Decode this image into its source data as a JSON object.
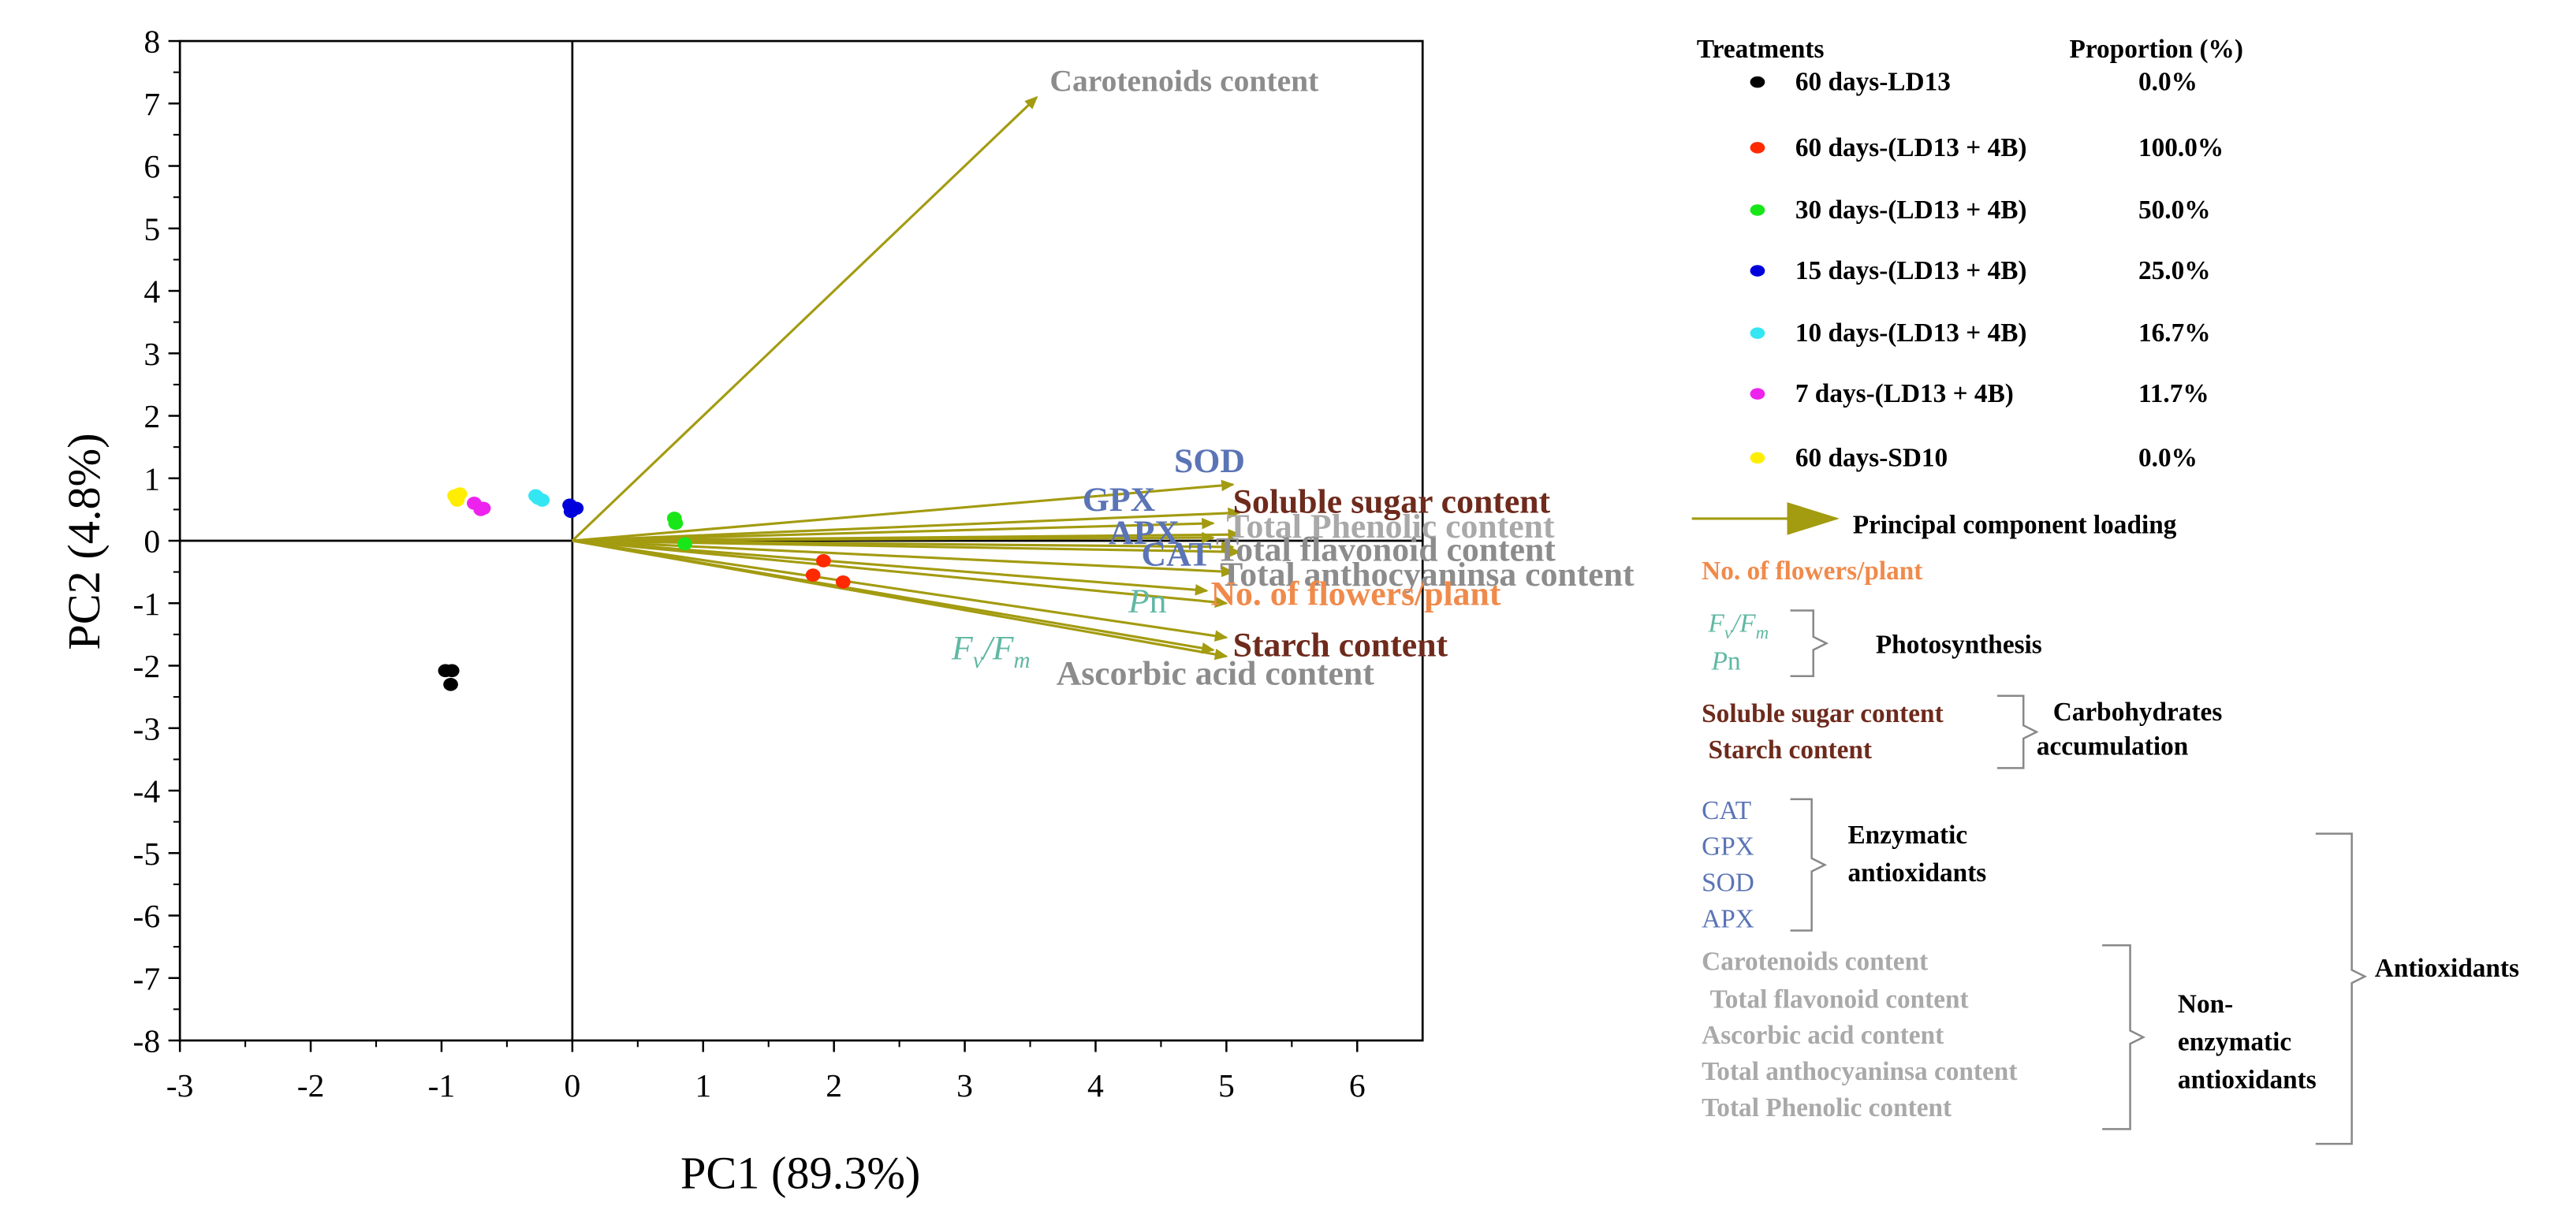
{
  "chart_data": {
    "type": "scatter",
    "title": "",
    "xlabel": "PC1 (89.3%)",
    "ylabel": "PC2 (4.8%)",
    "xlim": [
      -3,
      6.5
    ],
    "ylim": [
      -8,
      8
    ],
    "xticks": [
      -3,
      -2,
      -1,
      0,
      1,
      2,
      3,
      4,
      5,
      6
    ],
    "yticks": [
      -8,
      -7,
      -6,
      -5,
      -4,
      -3,
      -2,
      -1,
      0,
      1,
      2,
      3,
      4,
      5,
      6,
      7,
      8
    ],
    "series": [
      {
        "name": "60 days-LD13",
        "proportion": "0.0%",
        "color": "#000000",
        "points": [
          [
            -0.97,
            -2.08
          ],
          [
            -0.92,
            -2.08
          ],
          [
            -0.93,
            -2.3
          ]
        ]
      },
      {
        "name": "60 days-(LD13 + 4B)",
        "proportion": "100.0%",
        "color": "#ff2a00",
        "points": [
          [
            1.92,
            -0.32
          ],
          [
            1.84,
            -0.55
          ],
          [
            2.07,
            -0.66
          ]
        ]
      },
      {
        "name": "30 days-(LD13 + 4B)",
        "proportion": "50.0%",
        "color": "#19e619",
        "points": [
          [
            0.78,
            0.36
          ],
          [
            0.79,
            0.28
          ],
          [
            0.86,
            -0.05
          ]
        ]
      },
      {
        "name": "15 days-(LD13 + 4B)",
        "proportion": "25.0%",
        "color": "#0000dd",
        "points": [
          [
            -0.02,
            0.57
          ],
          [
            0.03,
            0.52
          ],
          [
            -0.01,
            0.47
          ]
        ]
      },
      {
        "name": "10 days-(LD13 + 4B)",
        "proportion": "16.7%",
        "color": "#33e6f2",
        "points": [
          [
            -0.28,
            0.72
          ],
          [
            -0.23,
            0.65
          ],
          [
            -0.26,
            0.68
          ]
        ]
      },
      {
        "name": "7 days-(LD13 + 4B)",
        "proportion": "11.7%",
        "color": "#ee22ee",
        "points": [
          [
            -0.75,
            0.6
          ],
          [
            -0.7,
            0.5
          ],
          [
            -0.68,
            0.52
          ]
        ]
      },
      {
        "name": "60 days-SD10",
        "proportion": "0.0%",
        "color": "#ffee00",
        "points": [
          [
            -0.9,
            0.72
          ],
          [
            -0.86,
            0.75
          ],
          [
            -0.88,
            0.65
          ]
        ]
      }
    ],
    "loadings": [
      {
        "name": "Carotenoids content",
        "x": 3.55,
        "y": 7.1,
        "color": "#8c8c8c",
        "lx": 3.65,
        "ly": 7.2,
        "style": "normal",
        "lsize": 19
      },
      {
        "name": "SOD",
        "x": 5.05,
        "y": 0.9,
        "color": "#5b74b6",
        "lx": 4.6,
        "ly": 1.1,
        "style": "normal",
        "lsize": 21
      },
      {
        "name": "Soluble sugar content",
        "x": 5.1,
        "y": 0.45,
        "color": "#6e2a1c",
        "lx": 5.05,
        "ly": 0.45,
        "style": "normal",
        "lsize": 21
      },
      {
        "name": "GPX",
        "x": 4.9,
        "y": 0.28,
        "color": "#5b74b6",
        "lx": 3.9,
        "ly": 0.48,
        "style": "normal",
        "lsize": 21
      },
      {
        "name": "Total Phenolic content",
        "x": 5.1,
        "y": 0.1,
        "color": "#a9a9a9",
        "lx": 5.0,
        "ly": 0.05,
        "style": "normal",
        "lsize": 21
      },
      {
        "name": "APX",
        "x": 4.9,
        "y": 0.05,
        "color": "#5b74b6",
        "lx": 4.1,
        "ly": -0.05,
        "style": "normal",
        "lsize": 21
      },
      {
        "name": "CAT",
        "x": 5.05,
        "y": -0.1,
        "color": "#5b74b6",
        "lx": 4.35,
        "ly": -0.4,
        "style": "normal",
        "lsize": 21
      },
      {
        "name": "Total flavonoid content",
        "x": 5.1,
        "y": -0.18,
        "color": "#8c8c8c",
        "lx": 4.92,
        "ly": -0.32,
        "style": "normal",
        "lsize": 21
      },
      {
        "name": "Total anthocyaninsa content",
        "x": 5.05,
        "y": -0.5,
        "color": "#8c8c8c",
        "lx": 4.95,
        "ly": -0.72,
        "style": "normal",
        "lsize": 21
      },
      {
        "name": "Pn",
        "x": 4.85,
        "y": -0.8,
        "color": "#5fb8a3",
        "lx": 4.25,
        "ly": -1.15,
        "style": "italic",
        "lsize": 21
      },
      {
        "name": "No. of flowers/plant",
        "x": 5.0,
        "y": -1.0,
        "color": "#f08a4b",
        "lx": 4.88,
        "ly": -1.03,
        "style": "normal",
        "lsize": 21
      },
      {
        "name": "Starch content",
        "x": 5.0,
        "y": -1.55,
        "color": "#6e2a1c",
        "lx": 5.05,
        "ly": -1.85,
        "style": "normal",
        "lsize": 21
      },
      {
        "name": "Fv/Fm",
        "x": 5.0,
        "y": -1.85,
        "color": "#5fb8a3",
        "lx": 2.9,
        "ly": -1.9,
        "style": "italic",
        "lsize": 21
      },
      {
        "name": "Ascorbic acid content",
        "x": 4.9,
        "y": -1.75,
        "color": "#8c8c8c",
        "lx": 3.7,
        "ly": -2.3,
        "style": "normal",
        "lsize": 21
      }
    ]
  },
  "legend": {
    "treatments_header": "Treatments",
    "proportion_header": "Proportion (%)",
    "loading_label": "Principal component loading",
    "arrow_color": "#a39b10",
    "flowers_label": "No. of flowers/plant",
    "photosynthesis": {
      "items": [
        "Fv/Fm",
        "Pn"
      ],
      "label": "Photosynthesis"
    },
    "carbohydrates": {
      "items": [
        "Soluble sugar content",
        "Starch content"
      ],
      "label": [
        "Carbohydrates",
        "accumulation"
      ]
    },
    "enzymatic": {
      "items": [
        "CAT",
        "GPX",
        "SOD",
        "APX"
      ],
      "label": [
        "Enzymatic",
        "antioxidants"
      ]
    },
    "non_enzymatic": {
      "items": [
        "Carotenoids content",
        "Total flavonoid content",
        "Ascorbic acid content",
        "Total anthocyaninsa content",
        "Total Phenolic content"
      ],
      "label": [
        "Non-",
        "enzymatic",
        "antioxidants"
      ]
    },
    "antioxidants_label": "Antioxidants"
  }
}
